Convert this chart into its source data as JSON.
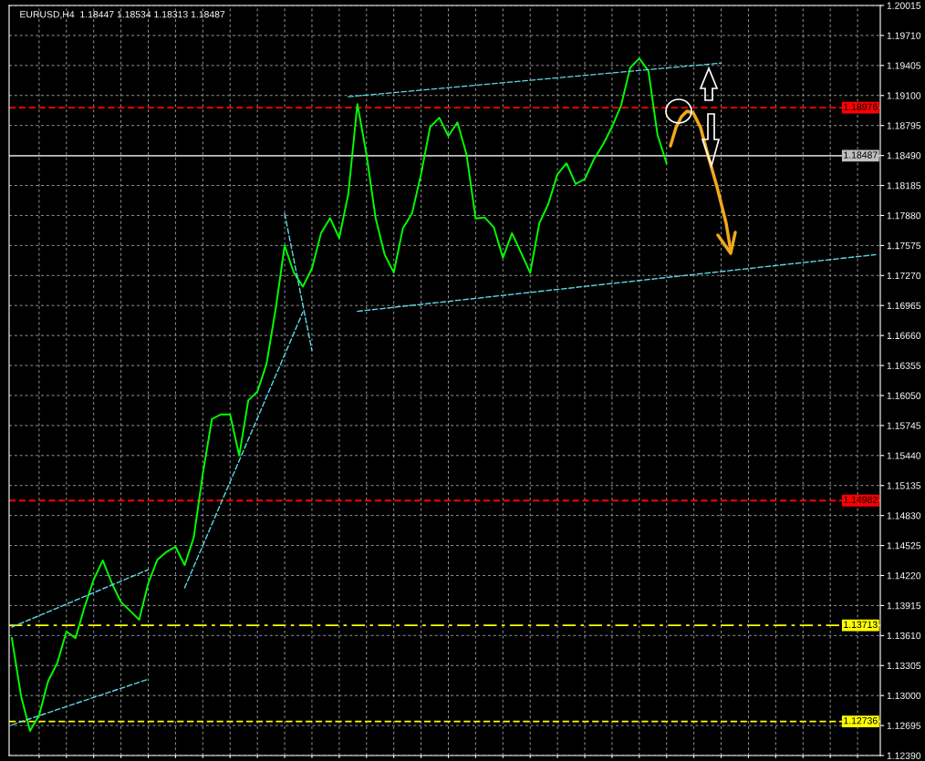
{
  "chart_data": {
    "type": "line",
    "title": "EURUSD,H4  1.18447 1.18534 1.18313 1.18487",
    "categories": [
      null,
      null,
      null,
      null,
      null,
      null,
      null,
      null,
      null,
      null,
      null,
      null,
      null,
      null,
      null,
      null,
      null,
      null,
      null,
      null,
      null,
      null,
      null,
      null,
      null,
      null,
      null,
      null,
      null,
      null,
      null,
      null,
      null,
      null,
      null,
      null,
      null,
      null,
      null,
      null,
      null,
      null,
      null,
      null,
      null,
      null,
      null,
      null,
      null,
      null,
      null,
      null,
      null,
      null,
      null,
      null,
      null,
      null,
      null,
      null,
      null,
      null,
      null,
      null,
      null,
      null,
      null,
      null,
      null,
      null,
      null,
      null,
      null,
      null,
      null,
      null,
      null,
      null,
      null,
      null,
      null,
      null,
      null,
      null,
      null,
      null,
      null,
      null,
      null,
      null,
      null,
      null,
      null,
      null,
      null,
      null
    ],
    "ylim": [
      1.1239,
      1.20015
    ],
    "yticks": [
      {
        "value": 1.1239,
        "label": "1.12390"
      },
      {
        "value": 1.12695,
        "label": "1.12695"
      },
      {
        "value": 1.13,
        "label": "1.13000"
      },
      {
        "value": 1.13305,
        "label": "1.13305"
      },
      {
        "value": 1.1361,
        "label": "1.13610"
      },
      {
        "value": 1.13915,
        "label": "1.13915"
      },
      {
        "value": 1.1422,
        "label": "1.14220"
      },
      {
        "value": 1.14525,
        "label": "1.14525"
      },
      {
        "value": 1.1483,
        "label": "1.14830"
      },
      {
        "value": 1.15135,
        "label": "1.15135"
      },
      {
        "value": 1.1544,
        "label": "1.15440"
      },
      {
        "value": 1.15745,
        "label": "1.15745"
      },
      {
        "value": 1.1605,
        "label": "1.16050"
      },
      {
        "value": 1.16355,
        "label": "1.16355"
      },
      {
        "value": 1.1666,
        "label": "1.16660"
      },
      {
        "value": 1.16965,
        "label": "1.16965"
      },
      {
        "value": 1.1727,
        "label": "1.17270"
      },
      {
        "value": 1.17575,
        "label": "1.17575"
      },
      {
        "value": 1.1788,
        "label": "1.17880"
      },
      {
        "value": 1.18185,
        "label": "1.18185"
      },
      {
        "value": 1.1849,
        "label": "1.18490"
      },
      {
        "value": 1.18795,
        "label": "1.18795"
      },
      {
        "value": 1.191,
        "label": "1.19100"
      },
      {
        "value": 1.19405,
        "label": "1.19405"
      },
      {
        "value": 1.1971,
        "label": "1.19710"
      },
      {
        "value": 1.20015,
        "label": "1.20015"
      }
    ],
    "tick_labels": "y",
    "grid": true,
    "series": [
      {
        "color": "#00ff00",
        "line_style": "solid",
        "values": [
          1.13584,
          1.13,
          1.1264,
          1.128,
          1.1315,
          1.1333,
          1.1365,
          1.13584,
          1.139,
          1.1418,
          1.14373,
          1.14141,
          1.1395,
          1.13862,
          1.1377,
          1.14141,
          1.1438,
          1.1446,
          1.14512,
          1.14326,
          1.14605,
          1.15254,
          1.15811,
          1.15858,
          1.15858,
          1.1544,
          1.16,
          1.1609,
          1.16368,
          1.16925,
          1.17574,
          1.173,
          1.17157,
          1.17342,
          1.177,
          1.17853,
          1.1765,
          1.181,
          1.19013,
          1.185,
          1.17853,
          1.17482,
          1.173,
          1.1775,
          1.179,
          1.183,
          1.18781,
          1.18874,
          1.18688,
          1.18827,
          1.185,
          1.1785,
          1.1786,
          1.1776,
          1.1745,
          1.177,
          1.175,
          1.17296,
          1.178,
          1.18,
          1.183,
          1.1841,
          1.182,
          1.1825,
          1.1845,
          1.186,
          1.18781,
          1.19,
          1.19384,
          1.19477,
          1.1935,
          1.187,
          1.1841,
          null,
          null,
          null,
          null,
          null,
          null,
          null,
          null,
          null,
          null,
          null,
          null,
          null,
          null,
          null,
          null,
          null,
          null,
          null,
          null,
          null,
          null,
          null
        ]
      },
      {
        "color": "#5fd7e6",
        "line_style": "dashed",
        "values": [
          null,
          null,
          null,
          null,
          null,
          null,
          null,
          null,
          null,
          null,
          null,
          null,
          null,
          null,
          null,
          null,
          null,
          null,
          null,
          null,
          null,
          null,
          null,
          null,
          null,
          null,
          null,
          null,
          null,
          null,
          null,
          null,
          null,
          null,
          null,
          null,
          null,
          1.19087,
          null,
          null,
          null,
          null,
          null,
          null,
          null,
          null,
          null,
          null,
          null,
          null,
          null,
          null,
          null,
          null,
          null,
          null,
          null,
          null,
          null,
          null,
          null,
          null,
          null,
          null,
          null,
          null,
          null,
          null,
          null,
          null,
          null,
          null,
          null,
          null,
          null,
          null,
          null,
          null,
          1.1943,
          null,
          null,
          null,
          null,
          null,
          null,
          null,
          null,
          null,
          null,
          null,
          null,
          null,
          null,
          null,
          null,
          null
        ]
      },
      {
        "color": "#5fd7e6",
        "line_style": "dashed",
        "values": [
          null,
          null,
          null,
          null,
          null,
          null,
          null,
          null,
          null,
          null,
          null,
          null,
          null,
          null,
          null,
          null,
          null,
          null,
          null,
          null,
          null,
          null,
          null,
          null,
          null,
          null,
          null,
          null,
          null,
          null,
          null,
          null,
          null,
          null,
          null,
          null,
          null,
          null,
          1.16906,
          null,
          null,
          null,
          null,
          null,
          null,
          null,
          null,
          null,
          null,
          null,
          null,
          null,
          null,
          null,
          null,
          null,
          null,
          null,
          null,
          null,
          null,
          null,
          null,
          null,
          null,
          null,
          null,
          null,
          null,
          null,
          null,
          null,
          null,
          null,
          null,
          null,
          null,
          null,
          null,
          null,
          null,
          null,
          null,
          null,
          null,
          null,
          null,
          null,
          null,
          null,
          null,
          null,
          null,
          null,
          null,
          1.17482
        ]
      },
      {
        "color": "#5fd7e6",
        "line_style": "dashed",
        "values": [
          1.12702,
          null,
          null,
          null,
          null,
          null,
          null,
          null,
          null,
          null,
          null,
          null,
          null,
          null,
          null,
          1.13166,
          null,
          null,
          null,
          null,
          null,
          null,
          null,
          null,
          null,
          null,
          null,
          null,
          null,
          null,
          null,
          null,
          null,
          null,
          null,
          null,
          null,
          null,
          null,
          null,
          null,
          null,
          null,
          null,
          null,
          null,
          null,
          null,
          null,
          null,
          null,
          null,
          null,
          null,
          null,
          null,
          null,
          null,
          null,
          null,
          null,
          null,
          null,
          null,
          null,
          null,
          null,
          null,
          null,
          null,
          null,
          null,
          null,
          null,
          null,
          null,
          null,
          null,
          null,
          null,
          null,
          null,
          null,
          null,
          null,
          null,
          null,
          null,
          null,
          null,
          null,
          null,
          null,
          null,
          null,
          null
        ]
      },
      {
        "color": "#5fd7e6",
        "line_style": "dashed",
        "values": [
          1.13695,
          null,
          null,
          null,
          null,
          null,
          null,
          null,
          null,
          null,
          null,
          null,
          null,
          null,
          null,
          1.1428,
          null,
          null,
          null,
          null,
          null,
          null,
          null,
          null,
          null,
          null,
          null,
          null,
          null,
          null,
          null,
          null,
          null,
          null,
          null,
          null,
          null,
          null,
          null,
          null,
          null,
          null,
          null,
          null,
          null,
          null,
          null,
          null,
          null,
          null,
          null,
          null,
          null,
          null,
          null,
          null,
          null,
          null,
          null,
          null,
          null,
          null,
          null,
          null,
          null,
          null,
          null,
          null,
          null,
          null,
          null,
          null,
          null,
          null,
          null,
          null,
          null,
          null,
          null,
          null,
          null,
          null,
          null,
          null,
          null,
          null,
          null,
          null,
          null,
          null,
          null,
          null,
          null,
          null,
          null,
          null
        ]
      },
      {
        "color": "#5fd7e6",
        "line_style": "dashed",
        "values": [
          null,
          null,
          null,
          null,
          null,
          null,
          null,
          null,
          null,
          null,
          null,
          null,
          null,
          null,
          null,
          null,
          null,
          null,
          null,
          1.14094,
          null,
          null,
          null,
          null,
          null,
          null,
          null,
          null,
          null,
          null,
          null,
          null,
          1.16897,
          null,
          null,
          null,
          null,
          null,
          null,
          null,
          null,
          null,
          null,
          null,
          null,
          null,
          null,
          null,
          null,
          null,
          null,
          null,
          null,
          null,
          null,
          null,
          null,
          null,
          null,
          null,
          null,
          null,
          null,
          null,
          null,
          null,
          null,
          null,
          null,
          null,
          null,
          null,
          null,
          null,
          null,
          null,
          null,
          null,
          null,
          null,
          null,
          null,
          null,
          null,
          null,
          null,
          null,
          null,
          null,
          null,
          null,
          null,
          null,
          null,
          null,
          null
        ]
      },
      {
        "color": "#5fd7e6",
        "line_style": "dashed",
        "values": [
          null,
          null,
          null,
          null,
          null,
          null,
          null,
          null,
          null,
          null,
          null,
          null,
          null,
          null,
          null,
          null,
          null,
          null,
          null,
          null,
          null,
          null,
          null,
          null,
          null,
          null,
          null,
          null,
          null,
          null,
          1.17899,
          null,
          null,
          1.16507,
          null,
          null,
          null,
          null,
          null,
          null,
          null,
          null,
          null,
          null,
          null,
          null,
          null,
          null,
          null,
          null,
          null,
          null,
          null,
          null,
          null,
          null,
          null,
          null,
          null,
          null,
          null,
          null,
          null,
          null,
          null,
          null,
          null,
          null,
          null,
          null,
          null,
          null,
          null,
          null,
          null,
          null,
          null,
          null,
          null,
          null,
          null,
          null,
          null,
          null,
          null,
          null,
          null,
          null,
          null,
          null,
          null,
          null,
          null,
          null,
          null,
          null
        ]
      }
    ],
    "ref_lines": [
      {
        "axis": "y",
        "value": 1.18976,
        "label": "1.18976",
        "color": "#ff0000",
        "line_style": "dashed"
      },
      {
        "axis": "y",
        "value": 1.18487,
        "label": "1.18487",
        "color": "#c0c0c0",
        "line_style": "solid"
      },
      {
        "axis": "y",
        "value": 1.14982,
        "label": "1.14982",
        "color": "#ff0000",
        "line_style": "dashed"
      },
      {
        "axis": "y",
        "value": 1.13713,
        "label": "1.13713",
        "color": "#ffff00",
        "line_style": "dashdot"
      },
      {
        "axis": "y",
        "value": 1.12736,
        "label": "1.12736",
        "color": "#ffff00",
        "line_style": "dashed"
      }
    ]
  }
}
